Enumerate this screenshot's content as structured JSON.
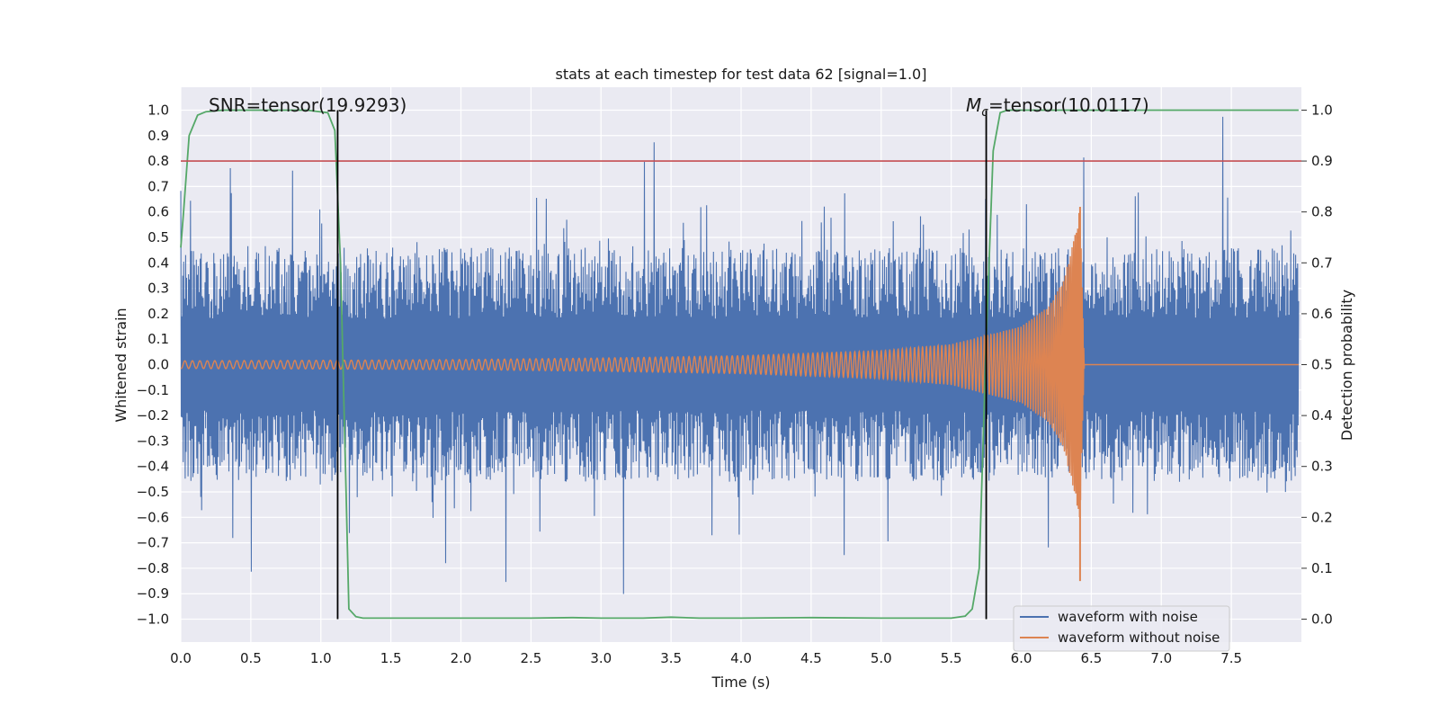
{
  "chart_data": {
    "type": "line",
    "title": "stats at each timestep for test data 62 [signal=1.0]",
    "xlabel": "Time (s)",
    "ylabel": "Whitened strain",
    "y2label": "Detection probability",
    "xlim": [
      0.0,
      8.0
    ],
    "ylim": [
      -1.09,
      1.09
    ],
    "y2lim": [
      -0.045,
      1.045
    ],
    "grid": true,
    "x_ticks": [
      "0.0",
      "0.5",
      "1.0",
      "1.5",
      "2.0",
      "2.5",
      "3.0",
      "3.5",
      "4.0",
      "4.5",
      "5.0",
      "5.5",
      "6.0",
      "6.5",
      "7.0",
      "7.5"
    ],
    "y_ticks": [
      "1.0",
      "0.9",
      "0.8",
      "0.7",
      "0.6",
      "0.5",
      "0.4",
      "0.3",
      "0.2",
      "0.1",
      "0.0",
      "−0.1",
      "−0.2",
      "−0.3",
      "−0.4",
      "−0.5",
      "−0.6",
      "−0.7",
      "−0.8",
      "−0.9",
      "−1.0"
    ],
    "y2_ticks": [
      "1.0",
      "0.9",
      "0.8",
      "0.7",
      "0.6",
      "0.5",
      "0.4",
      "0.3",
      "0.2",
      "0.1",
      "0.0"
    ],
    "threshold": {
      "y2": 0.9,
      "color": "#c44e52"
    },
    "vertical_lines": [
      {
        "x": 1.12,
        "color": "#000000"
      },
      {
        "x": 5.75,
        "color": "#000000"
      }
    ],
    "annotations": {
      "snr": "SNR=tensor(19.9293)",
      "mc_symbol": "M",
      "mc_sub": "c",
      "mc_value": "=tensor(10.0117)"
    },
    "series": [
      {
        "name": "waveform with noise",
        "color": "#4c72b0",
        "axis": "left",
        "description": "noisy whitened strain, peaks mostly within ±0.6, occasional spikes to about ±0.99",
        "amplitude_typical": 0.55,
        "amplitude_max": 0.99
      },
      {
        "name": "waveform without noise",
        "color": "#dd8452",
        "axis": "left",
        "envelope": {
          "t": [
            0.0,
            1.0,
            2.0,
            3.0,
            4.0,
            5.0,
            5.5,
            6.0,
            6.2,
            6.3,
            6.38,
            6.42,
            6.45
          ],
          "amp": [
            0.015,
            0.017,
            0.02,
            0.026,
            0.035,
            0.055,
            0.08,
            0.15,
            0.23,
            0.33,
            0.5,
            0.62,
            0.0
          ]
        },
        "merger_time": 6.42
      },
      {
        "name": "detection probability",
        "color": "#55a868",
        "axis": "right",
        "x": [
          0.0,
          0.02,
          0.06,
          0.12,
          0.18,
          0.3,
          0.6,
          0.9,
          1.05,
          1.1,
          1.14,
          1.18,
          1.2,
          1.25,
          1.3,
          1.5,
          2.0,
          2.5,
          2.8,
          3.0,
          3.3,
          3.5,
          3.7,
          4.0,
          4.5,
          5.0,
          5.5,
          5.6,
          5.65,
          5.7,
          5.75,
          5.8,
          5.85,
          5.9,
          6.0,
          7.0,
          7.98
        ],
        "y": [
          0.73,
          0.8,
          0.95,
          0.99,
          0.997,
          1.0,
          1.0,
          1.0,
          0.995,
          0.96,
          0.7,
          0.25,
          0.02,
          0.005,
          0.002,
          0.002,
          0.002,
          0.002,
          0.003,
          0.002,
          0.002,
          0.004,
          0.002,
          0.002,
          0.003,
          0.002,
          0.002,
          0.006,
          0.02,
          0.1,
          0.55,
          0.92,
          0.995,
          1.0,
          1.0,
          1.0,
          1.0
        ]
      }
    ],
    "legend": {
      "position": "lower-right",
      "entries": [
        {
          "label": "waveform with noise",
          "color": "#4c72b0"
        },
        {
          "label": "waveform without noise",
          "color": "#dd8452"
        }
      ]
    }
  }
}
